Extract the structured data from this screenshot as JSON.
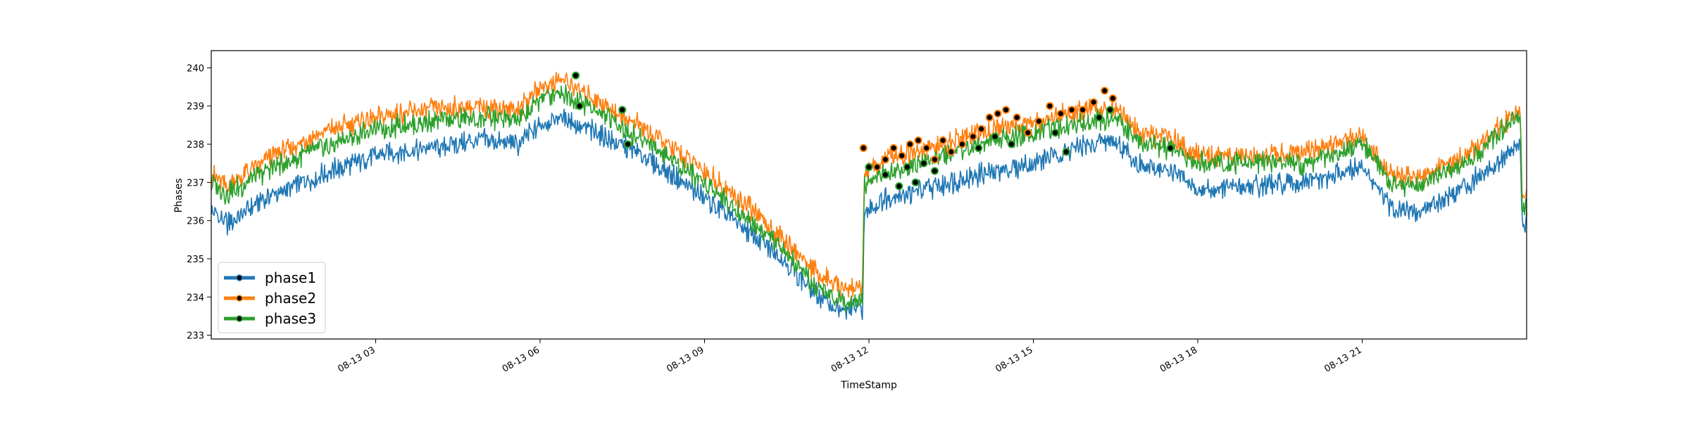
{
  "chart_data": {
    "type": "line",
    "xlabel": "TimeStamp",
    "ylabel": "Phases",
    "ylim": [
      232.9,
      240.45
    ],
    "xlim_hours": [
      0,
      24
    ],
    "x_tick_hours": [
      3,
      6,
      9,
      12,
      15,
      18,
      21
    ],
    "x_tick_labels": [
      "08-13 03",
      "08-13 06",
      "08-13 09",
      "08-13 12",
      "08-13 15",
      "08-13 18",
      "08-13 21"
    ],
    "y_ticks": [
      233,
      234,
      235,
      236,
      237,
      238,
      239,
      240
    ],
    "y_tick_labels": [
      "233",
      "234",
      "235",
      "236",
      "237",
      "238",
      "239",
      "240"
    ],
    "legend_position": "lower-left",
    "grid": false,
    "marker_color": "#000000",
    "series": [
      {
        "name": "phase1",
        "color": "#1f77b4",
        "line_hours": [
          0,
          0.3,
          1,
          2,
          3,
          4,
          5,
          5.6,
          6,
          6.4,
          7,
          8,
          9,
          10,
          10.5,
          11,
          11.5,
          11.88,
          11.92,
          12.3,
          13,
          14,
          15,
          16,
          16.5,
          17,
          17.5,
          18,
          19,
          20,
          21,
          21.5,
          22,
          23,
          23.88,
          23.92,
          24
        ],
        "line_values": [
          236.2,
          235.9,
          236.6,
          237.2,
          237.7,
          237.9,
          238.1,
          238.0,
          238.5,
          238.7,
          238.3,
          237.6,
          236.6,
          235.5,
          234.9,
          234.1,
          233.6,
          233.7,
          236.2,
          236.6,
          236.8,
          237.2,
          237.5,
          238.0,
          238.1,
          237.4,
          237.3,
          236.8,
          236.9,
          237.0,
          237.4,
          236.4,
          236.2,
          237.0,
          238.0,
          236.0,
          235.9
        ],
        "marker_hours": [],
        "marker_values": []
      },
      {
        "name": "phase2",
        "color": "#ff7f0e",
        "line_hours": [
          0,
          0.3,
          1,
          2,
          3,
          4,
          5,
          5.6,
          6,
          6.4,
          7,
          8,
          9,
          10,
          10.5,
          11,
          11.5,
          11.88,
          11.92,
          12.3,
          13,
          14,
          15,
          16,
          16.5,
          17,
          17.5,
          18,
          19,
          20,
          21,
          21.5,
          22,
          23,
          23.88,
          23.92,
          24
        ],
        "line_values": [
          237.2,
          236.9,
          237.6,
          238.3,
          238.7,
          238.9,
          239.0,
          238.9,
          239.5,
          239.7,
          239.2,
          238.3,
          237.3,
          236.1,
          235.4,
          234.7,
          234.2,
          234.3,
          237.2,
          237.6,
          237.8,
          238.3,
          238.6,
          238.9,
          239.0,
          238.2,
          238.2,
          237.7,
          237.7,
          237.8,
          238.2,
          237.2,
          237.1,
          237.8,
          238.9,
          236.7,
          236.6
        ],
        "marker_hours": [
          11.9,
          12.15,
          12.3,
          12.45,
          12.6,
          12.75,
          12.9,
          13.05,
          13.2,
          13.35,
          13.5,
          13.7,
          13.9,
          14.05,
          14.2,
          14.35,
          14.5,
          14.7,
          14.9,
          15.1,
          15.3,
          15.5,
          15.7,
          15.9,
          16.1,
          16.3,
          16.45
        ],
        "marker_values": [
          237.9,
          237.4,
          237.6,
          237.9,
          237.7,
          238.0,
          238.1,
          237.9,
          237.6,
          238.1,
          237.8,
          238.0,
          238.2,
          238.4,
          238.7,
          238.8,
          238.9,
          238.7,
          238.3,
          238.6,
          239.0,
          238.8,
          238.9,
          238.9,
          239.1,
          239.4,
          239.2
        ]
      },
      {
        "name": "phase3",
        "color": "#2ca02c",
        "line_hours": [
          0,
          0.3,
          1,
          2,
          3,
          4,
          5,
          5.6,
          6,
          6.4,
          7,
          8,
          9,
          10,
          10.5,
          11,
          11.5,
          11.88,
          11.92,
          12.3,
          13,
          14,
          15,
          16,
          16.5,
          17,
          17.5,
          18,
          19,
          20,
          21,
          21.5,
          22,
          23,
          23.88,
          23.92,
          24
        ],
        "line_values": [
          237.0,
          236.7,
          237.3,
          237.9,
          238.4,
          238.6,
          238.7,
          238.6,
          239.2,
          239.4,
          238.9,
          238.0,
          237.0,
          235.8,
          235.1,
          234.3,
          233.9,
          234.0,
          236.9,
          237.3,
          237.5,
          238.0,
          238.3,
          238.6,
          238.7,
          238.0,
          237.9,
          237.5,
          237.5,
          237.5,
          238.0,
          237.0,
          236.9,
          237.6,
          238.8,
          236.5,
          236.3
        ],
        "marker_hours": [
          6.65,
          6.72,
          7.5,
          7.6,
          12.0,
          12.3,
          12.55,
          12.7,
          12.85,
          13.0,
          13.2,
          14.0,
          14.3,
          14.6,
          15.4,
          15.6,
          16.2,
          16.4,
          17.5
        ],
        "marker_values": [
          239.8,
          239.0,
          238.9,
          238.0,
          237.4,
          237.2,
          236.9,
          237.4,
          237.0,
          237.5,
          237.3,
          237.9,
          238.2,
          238.0,
          238.3,
          237.8,
          238.7,
          238.9,
          237.9
        ]
      }
    ]
  }
}
